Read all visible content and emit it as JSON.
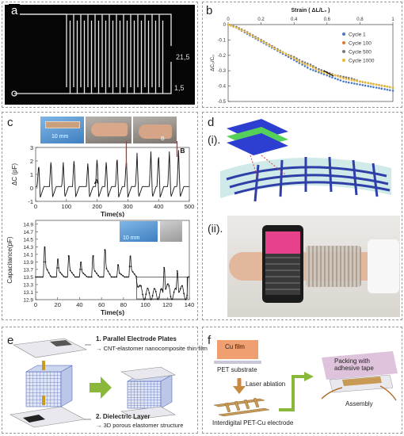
{
  "panels": {
    "a": {
      "label": "a",
      "dim_width": "21,5",
      "dim_gap": "1,5"
    },
    "b": {
      "label": "b"
    },
    "c": {
      "label": "c",
      "inset_scale": "10 mm",
      "marker_a": "A",
      "marker_b": "B",
      "photo_marker": "B",
      "top_chart_ylabel": "ΔC (pF)",
      "top_chart_xlabel": "Time(s)",
      "bottom_chart_ylabel": "Capacitance(pF)",
      "bottom_chart_xlabel": "Time(s)",
      "bottom_inset_scale": "10 mm"
    },
    "d": {
      "label": "d",
      "sub1": "(i).",
      "sub2": "(ii)."
    },
    "e": {
      "label": "e",
      "callout1_title": "1. Parallel Electrode Plates",
      "callout1_text": "→ CNT-elastomer nanocomposite thin film",
      "callout2_title": "2. Dielectric Layer",
      "callout2_text": "→ 3D porous elastomer structure"
    },
    "f": {
      "label": "f",
      "cu_film": "Cu film",
      "pet_substrate": "PET substrate",
      "laser": "Laser ablation",
      "packing": "Packing with adhesive tape",
      "assembly": "Assembly",
      "electrode": "Interdigital PET-Cu electrode"
    }
  },
  "chart_data": [
    {
      "type": "scatter",
      "id": "b",
      "xlabel": "Strain ( ΔL/L₀ )",
      "ylabel": "ΔC₀/C₀",
      "xlim": [
        0,
        1
      ],
      "ylim": [
        -0.5,
        0
      ],
      "xticks": [
        "0",
        "0.2",
        "0.4",
        "0.6",
        "0.8",
        "1"
      ],
      "yticks": [
        "0",
        "-0.1",
        "-0.2",
        "-0.3",
        "-0.4",
        "-0.5"
      ],
      "legend_position": "top-right",
      "series": [
        {
          "name": "Cycle 1",
          "color": "#4a78c4",
          "x": [
            0,
            0.05,
            0.1,
            0.15,
            0.2,
            0.25,
            0.3,
            0.35,
            0.4,
            0.45,
            0.5,
            0.55,
            0.6,
            0.65,
            0.7,
            0.75,
            0.8,
            0.85,
            0.9,
            0.95,
            1.0
          ],
          "y": [
            0,
            -0.02,
            -0.05,
            -0.08,
            -0.11,
            -0.14,
            -0.17,
            -0.2,
            -0.23,
            -0.26,
            -0.29,
            -0.31,
            -0.33,
            -0.35,
            -0.37,
            -0.38,
            -0.39,
            -0.4,
            -0.41,
            -0.42,
            -0.43
          ]
        },
        {
          "name": "Cycle 100",
          "color": "#e07830",
          "x": [
            0,
            0.05,
            0.1,
            0.15,
            0.2,
            0.25,
            0.3,
            0.35,
            0.4,
            0.45,
            0.5,
            0.55,
            0.6,
            0.65,
            0.7,
            0.75,
            0.8,
            0.85,
            0.9,
            0.95,
            1.0
          ],
          "y": [
            0,
            -0.015,
            -0.04,
            -0.07,
            -0.1,
            -0.13,
            -0.16,
            -0.19,
            -0.22,
            -0.25,
            -0.27,
            -0.29,
            -0.31,
            -0.33,
            -0.34,
            -0.36,
            -0.37,
            -0.38,
            -0.39,
            -0.4,
            -0.41
          ]
        },
        {
          "name": "Cycle 500",
          "color": "#7a7a7a",
          "x": [
            0,
            0.05,
            0.1,
            0.15,
            0.2,
            0.25,
            0.3,
            0.35,
            0.4,
            0.45,
            0.5,
            0.55,
            0.6,
            0.65,
            0.7,
            0.75,
            0.8,
            0.85,
            0.9,
            0.95,
            1.0
          ],
          "y": [
            0,
            -0.015,
            -0.04,
            -0.07,
            -0.1,
            -0.13,
            -0.16,
            -0.19,
            -0.21,
            -0.24,
            -0.26,
            -0.29,
            -0.31,
            -0.33,
            -0.34,
            -0.35,
            -0.37,
            -0.38,
            -0.39,
            -0.4,
            -0.41
          ]
        },
        {
          "name": "Cycle 1000",
          "color": "#e8b830",
          "x": [
            0,
            0.05,
            0.1,
            0.15,
            0.2,
            0.25,
            0.3,
            0.35,
            0.4,
            0.45,
            0.5,
            0.55,
            0.6,
            0.65,
            0.7,
            0.75,
            0.8,
            0.85,
            0.9,
            0.95,
            1.0
          ],
          "y": [
            0,
            -0.02,
            -0.045,
            -0.075,
            -0.105,
            -0.135,
            -0.165,
            -0.19,
            -0.22,
            -0.25,
            -0.27,
            -0.3,
            -0.32,
            -0.33,
            -0.35,
            -0.36,
            -0.37,
            -0.38,
            -0.39,
            -0.4,
            -0.41
          ]
        }
      ]
    },
    {
      "type": "line",
      "id": "c-top",
      "xlabel": "Time(s)",
      "ylabel": "ΔC (pF)",
      "xlim": [
        0,
        500
      ],
      "ylim": [
        -1,
        3
      ],
      "xticks": [
        "0",
        "100",
        "200",
        "300",
        "400",
        "500"
      ],
      "yticks": [
        "-1",
        "0",
        "1",
        "2",
        "3"
      ],
      "beats": [
        5,
        45,
        85,
        120,
        165,
        195,
        225,
        260,
        290,
        325,
        370,
        395,
        430,
        460
      ],
      "peak_heights": [
        1.7,
        2.0,
        1.8,
        2.1,
        1.9,
        2.2,
        2.0,
        2.3,
        2.1,
        2.5,
        2.6,
        2.5,
        2.6,
        2.7
      ],
      "baseline": 0.1
    },
    {
      "type": "line",
      "id": "c-bottom",
      "xlabel": "Time(s)",
      "ylabel": "Capacitance(pF)",
      "xlim": [
        0,
        140
      ],
      "ylim": [
        12.9,
        15.0
      ],
      "xticks": [
        "0",
        "20",
        "40",
        "60",
        "80",
        "100",
        "120",
        "140"
      ],
      "yticks": [
        "12.9",
        "13.0",
        "13.1",
        "13.2",
        "13.3",
        "13.4",
        "13.5",
        "13.6",
        "13.7",
        "13.8",
        "13.9",
        "14.0",
        "14.1",
        "14.2",
        "14.3",
        "14.4",
        "14.5",
        "14.6",
        "14.7",
        "14.8",
        "14.9",
        "15.0"
      ],
      "ytick_labels_shown": [
        "12.9",
        "13.1",
        "13.3",
        "13.5",
        "13.7",
        "13.9",
        "14.1",
        "14.3",
        "14.5",
        "14.7",
        "14.9"
      ],
      "peaks_t": [
        8,
        20,
        30,
        41,
        52,
        63,
        75,
        86,
        117,
        129
      ],
      "peaks_v": [
        14.5,
        14.1,
        14.2,
        14.0,
        14.2,
        14.4,
        13.9,
        14.2,
        14.5,
        14.3
      ],
      "baseline": 13.5
    }
  ]
}
